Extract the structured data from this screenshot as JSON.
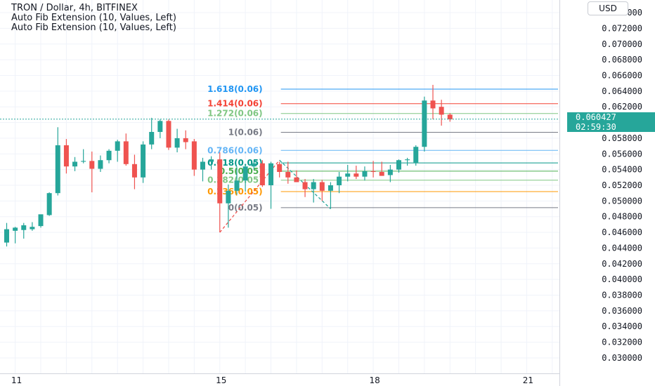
{
  "header": {
    "title": "TRON / Dollar, 4h, BITFINEX",
    "indicators": [
      "Auto Fib Extension (10, Values, Left)",
      "Auto Fib Extension (10, Values, Left)"
    ]
  },
  "price_axis": {
    "currency": "USD",
    "current_price": "0.060427",
    "countdown": "02:59:30"
  },
  "colors": {
    "up": "#26a69a",
    "down": "#ef5350",
    "grid": "#f0f3fa",
    "fib_1618": "#2196f3",
    "fib_1414": "#f44336",
    "fib_1272": "#81c784",
    "fib_1": "#787b86",
    "fib_0786": "#64b5f6",
    "fib_0618": "#009688",
    "fib_05": "#4caf50",
    "fib_0382": "#81c784",
    "fib_0236": "#ff9800",
    "fib_0": "#787b86"
  },
  "chart_data": {
    "type": "candlestick",
    "y_ticks": [
      "0.074000",
      "0.072000",
      "0.070000",
      "0.068000",
      "0.066000",
      "0.064000",
      "0.062000",
      "0.060000",
      "0.058000",
      "0.056000",
      "0.054000",
      "0.052000",
      "0.050000",
      "0.048000",
      "0.046000",
      "0.044000",
      "0.042000",
      "0.040000",
      "0.038000",
      "0.036000",
      "0.034000",
      "0.032000",
      "0.030000"
    ],
    "y_tick_values": [
      0.074,
      0.072,
      0.07,
      0.068,
      0.066,
      0.064,
      0.062,
      0.06,
      0.058,
      0.056,
      0.054,
      0.052,
      0.05,
      0.048,
      0.046,
      0.044,
      0.042,
      0.04,
      0.038,
      0.036,
      0.034,
      0.032,
      0.03
    ],
    "ylim": [
      0.0291,
      0.0749
    ],
    "x_ticks": [
      {
        "label": "11",
        "index": 1
      },
      {
        "label": "15",
        "index": 25
      },
      {
        "label": "18",
        "index": 43
      },
      {
        "label": "21",
        "index": 61
      }
    ],
    "candles": [
      {
        "o": 0.0447,
        "h": 0.0472,
        "l": 0.0442,
        "c": 0.0464
      },
      {
        "o": 0.0462,
        "h": 0.0467,
        "l": 0.0446,
        "c": 0.0466
      },
      {
        "o": 0.0463,
        "h": 0.0472,
        "l": 0.0452,
        "c": 0.0469
      },
      {
        "o": 0.0464,
        "h": 0.0473,
        "l": 0.0462,
        "c": 0.0467
      },
      {
        "o": 0.0468,
        "h": 0.0481,
        "l": 0.0466,
        "c": 0.0483
      },
      {
        "o": 0.0482,
        "h": 0.0511,
        "l": 0.0481,
        "c": 0.051
      },
      {
        "o": 0.051,
        "h": 0.0594,
        "l": 0.0507,
        "c": 0.0571
      },
      {
        "o": 0.0571,
        "h": 0.0579,
        "l": 0.0535,
        "c": 0.0544
      },
      {
        "o": 0.0544,
        "h": 0.0556,
        "l": 0.0538,
        "c": 0.055
      },
      {
        "o": 0.055,
        "h": 0.0566,
        "l": 0.0548,
        "c": 0.0551
      },
      {
        "o": 0.0551,
        "h": 0.0563,
        "l": 0.0511,
        "c": 0.0541
      },
      {
        "o": 0.0541,
        "h": 0.0558,
        "l": 0.0537,
        "c": 0.0552
      },
      {
        "o": 0.0552,
        "h": 0.0566,
        "l": 0.0548,
        "c": 0.0564
      },
      {
        "o": 0.0564,
        "h": 0.0578,
        "l": 0.055,
        "c": 0.0576
      },
      {
        "o": 0.0576,
        "h": 0.0586,
        "l": 0.0545,
        "c": 0.0547
      },
      {
        "o": 0.0547,
        "h": 0.0559,
        "l": 0.0515,
        "c": 0.053
      },
      {
        "o": 0.053,
        "h": 0.0576,
        "l": 0.0523,
        "c": 0.0572
      },
      {
        "o": 0.0572,
        "h": 0.0606,
        "l": 0.0566,
        "c": 0.0588
      },
      {
        "o": 0.0588,
        "h": 0.0604,
        "l": 0.058,
        "c": 0.0602
      },
      {
        "o": 0.0602,
        "h": 0.0604,
        "l": 0.0565,
        "c": 0.0568
      },
      {
        "o": 0.0568,
        "h": 0.0592,
        "l": 0.0562,
        "c": 0.058
      },
      {
        "o": 0.058,
        "h": 0.059,
        "l": 0.0566,
        "c": 0.0575
      },
      {
        "o": 0.0576,
        "h": 0.0579,
        "l": 0.0532,
        "c": 0.054
      },
      {
        "o": 0.054,
        "h": 0.0555,
        "l": 0.0525,
        "c": 0.055
      },
      {
        "o": 0.055,
        "h": 0.0557,
        "l": 0.054,
        "c": 0.0553
      },
      {
        "o": 0.0553,
        "h": 0.0562,
        "l": 0.046,
        "c": 0.0497
      },
      {
        "o": 0.0497,
        "h": 0.0521,
        "l": 0.0466,
        "c": 0.0513
      },
      {
        "o": 0.0513,
        "h": 0.0543,
        "l": 0.0508,
        "c": 0.0526
      },
      {
        "o": 0.0526,
        "h": 0.0547,
        "l": 0.0512,
        "c": 0.0544
      },
      {
        "o": 0.0544,
        "h": 0.0552,
        "l": 0.054,
        "c": 0.0548
      },
      {
        "o": 0.0548,
        "h": 0.0552,
        "l": 0.0518,
        "c": 0.052
      },
      {
        "o": 0.052,
        "h": 0.055,
        "l": 0.049,
        "c": 0.0548
      },
      {
        "o": 0.0547,
        "h": 0.055,
        "l": 0.053,
        "c": 0.0537
      },
      {
        "o": 0.0537,
        "h": 0.055,
        "l": 0.0522,
        "c": 0.053
      },
      {
        "o": 0.053,
        "h": 0.0539,
        "l": 0.0524,
        "c": 0.0524
      },
      {
        "o": 0.0524,
        "h": 0.0528,
        "l": 0.0505,
        "c": 0.0515
      },
      {
        "o": 0.0515,
        "h": 0.0528,
        "l": 0.0498,
        "c": 0.0524
      },
      {
        "o": 0.0524,
        "h": 0.0527,
        "l": 0.05,
        "c": 0.0513
      },
      {
        "o": 0.0513,
        "h": 0.0524,
        "l": 0.049,
        "c": 0.052
      },
      {
        "o": 0.052,
        "h": 0.0537,
        "l": 0.051,
        "c": 0.0531
      },
      {
        "o": 0.0531,
        "h": 0.0546,
        "l": 0.0525,
        "c": 0.0535
      },
      {
        "o": 0.0535,
        "h": 0.0545,
        "l": 0.0528,
        "c": 0.0531
      },
      {
        "o": 0.0531,
        "h": 0.0544,
        "l": 0.0526,
        "c": 0.0538
      },
      {
        "o": 0.0538,
        "h": 0.0551,
        "l": 0.053,
        "c": 0.0537
      },
      {
        "o": 0.0537,
        "h": 0.055,
        "l": 0.0532,
        "c": 0.0532
      },
      {
        "o": 0.0533,
        "h": 0.0546,
        "l": 0.0524,
        "c": 0.054
      },
      {
        "o": 0.054,
        "h": 0.0553,
        "l": 0.0536,
        "c": 0.0552
      },
      {
        "o": 0.0552,
        "h": 0.0555,
        "l": 0.0545,
        "c": 0.0553
      },
      {
        "o": 0.0549,
        "h": 0.0571,
        "l": 0.0545,
        "c": 0.0569
      },
      {
        "o": 0.0569,
        "h": 0.0633,
        "l": 0.0563,
        "c": 0.0628
      },
      {
        "o": 0.0628,
        "h": 0.0648,
        "l": 0.0604,
        "c": 0.0618
      },
      {
        "o": 0.062,
        "h": 0.0629,
        "l": 0.0596,
        "c": 0.061
      },
      {
        "o": 0.061,
        "h": 0.0612,
        "l": 0.0601,
        "c": 0.0604
      }
    ],
    "fib_levels": [
      {
        "label": "1.618(0.06)",
        "value": 0.06425,
        "color_key": "fib_1618"
      },
      {
        "label": "1.414(0.06)",
        "value": 0.0624,
        "color_key": "fib_1414"
      },
      {
        "label": "1.272(0.06)",
        "value": 0.06115,
        "color_key": "fib_1272"
      },
      {
        "label": "1(0.06)",
        "value": 0.05875,
        "color_key": "fib_1"
      },
      {
        "label": "0.786(0.06)",
        "value": 0.05645,
        "color_key": "fib_0786"
      },
      {
        "label": "0.618(0.05)",
        "value": 0.05485,
        "color_key": "fib_0618"
      },
      {
        "label": "0.5(0.05)",
        "value": 0.0538,
        "color_key": "fib_05"
      },
      {
        "label": "0.382(0.05)",
        "value": 0.05265,
        "color_key": "fib_0382"
      },
      {
        "label": "0.236(0.05)",
        "value": 0.0512,
        "color_key": "fib_0236"
      },
      {
        "label": "0(0.05)",
        "value": 0.04915,
        "color_key": "fib_0"
      }
    ],
    "fib_trend": [
      {
        "index": 25,
        "value": 0.046
      },
      {
        "index": 32,
        "value": 0.0552
      },
      {
        "index": 38,
        "value": 0.049
      }
    ],
    "fib_start_index": 32,
    "current_price_value": 0.060427
  }
}
